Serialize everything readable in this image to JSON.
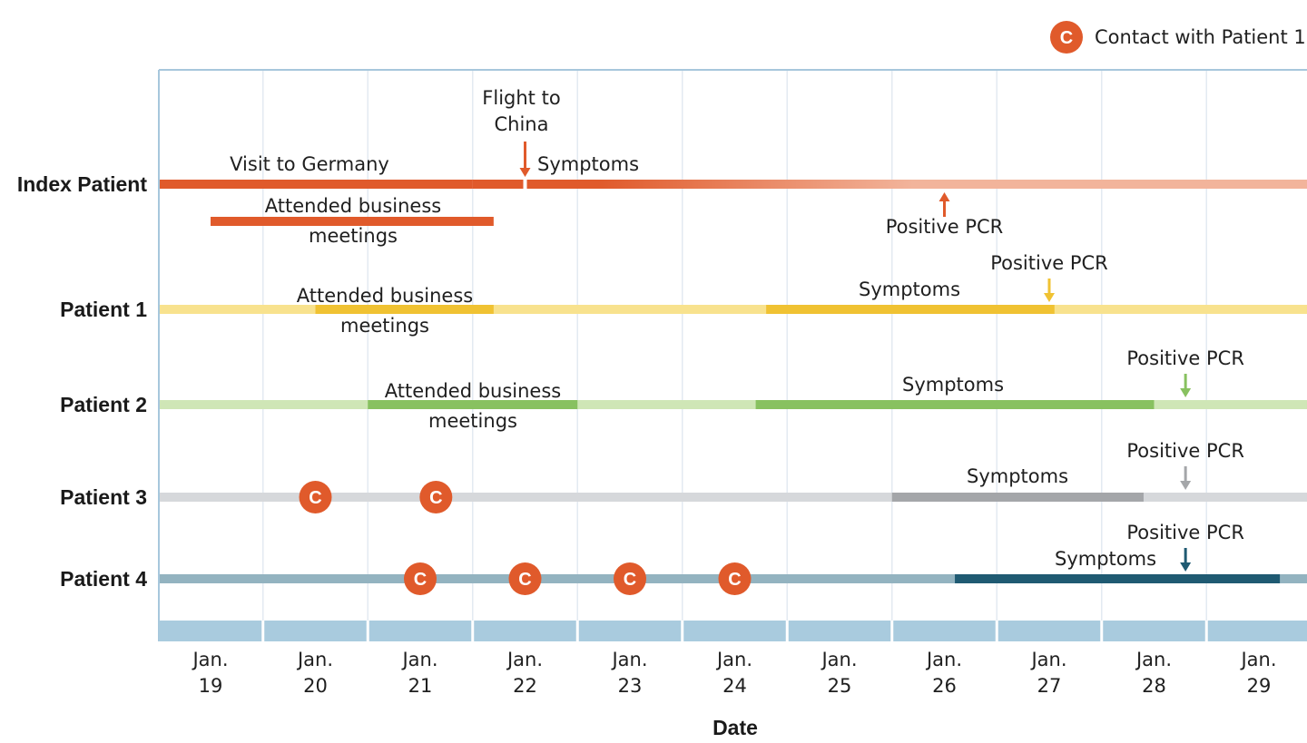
{
  "legend": {
    "marker": "C",
    "label": "Contact with Patient 1"
  },
  "x_axis": {
    "title": "Date",
    "ticks": [
      {
        "month": "Jan.",
        "day": "19"
      },
      {
        "month": "Jan.",
        "day": "20"
      },
      {
        "month": "Jan.",
        "day": "21"
      },
      {
        "month": "Jan.",
        "day": "22"
      },
      {
        "month": "Jan.",
        "day": "23"
      },
      {
        "month": "Jan.",
        "day": "24"
      },
      {
        "month": "Jan.",
        "day": "25"
      },
      {
        "month": "Jan.",
        "day": "26"
      },
      {
        "month": "Jan.",
        "day": "27"
      },
      {
        "month": "Jan.",
        "day": "28"
      },
      {
        "month": "Jan.",
        "day": "29"
      }
    ]
  },
  "colors": {
    "index_dark": "#e05a2b",
    "index_light": "#f2b49b",
    "p1_dark": "#f0c232",
    "p1_light": "#f8e28e",
    "p2_dark": "#88c160",
    "p2_light": "#cfe6b6",
    "p3_dark": "#a4a6a9",
    "p3_light": "#d6d8db",
    "p4_dark": "#1f5a72",
    "p4_light": "#93b3c0",
    "contact": "#e05a2b",
    "axis_band": "#a9cbde",
    "grid": "#e3eaf1",
    "frame": "#a7c7dc"
  },
  "rows": [
    {
      "id": "index",
      "label": "Index Patient",
      "line_color": "#f2b49b",
      "segments": [
        {
          "start": 18.5,
          "end": 21.5,
          "color": "#e05a2b",
          "label_lines": [
            "Visit to Germany"
          ]
        },
        {
          "start": 21.5,
          "end": 28.5,
          "color": "#e05a2b",
          "fade_to": "#f2b49b",
          "fade_from": 22.7,
          "fade_until": 25.7,
          "label_lines": [
            "Symptoms"
          ]
        }
      ],
      "sub_segments": [
        {
          "start": 19.0,
          "end": 21.7,
          "color": "#e05a2b",
          "label_lines": [
            "Attended business",
            "meetings"
          ]
        }
      ],
      "markers": [
        {
          "date": 22.0,
          "direction": "down",
          "color": "#e05a2b",
          "label_lines": [
            "Flight to",
            "China"
          ]
        },
        {
          "date": 26.0,
          "direction": "up",
          "color": "#e05a2b",
          "label_lines": [
            "Positive PCR"
          ]
        }
      ],
      "contacts": []
    },
    {
      "id": "patient1",
      "label": "Patient 1",
      "line_color": "#f8e28e",
      "segments": [
        {
          "start": 20.0,
          "end": 21.7,
          "color": "#f0c232",
          "label_lines": [
            "Attended business",
            "meetings"
          ]
        },
        {
          "start": 24.3,
          "end": 27.05,
          "color": "#f0c232",
          "label_lines": [
            "Symptoms"
          ]
        }
      ],
      "markers": [
        {
          "date": 27.0,
          "direction": "down",
          "color": "#f0c232",
          "label_lines": [
            "Positive PCR"
          ]
        }
      ],
      "contacts": []
    },
    {
      "id": "patient2",
      "label": "Patient 2",
      "line_color": "#cfe6b6",
      "segments": [
        {
          "start": 20.5,
          "end": 22.5,
          "color": "#88c160",
          "label_lines": [
            "Attended business",
            "meetings"
          ]
        },
        {
          "start": 24.2,
          "end": 28.0,
          "color": "#88c160",
          "label_lines": [
            "Symptoms"
          ]
        }
      ],
      "markers": [
        {
          "date": 28.3,
          "direction": "down",
          "color": "#88c160",
          "label_lines": [
            "Positive PCR"
          ]
        }
      ],
      "contacts": []
    },
    {
      "id": "patient3",
      "label": "Patient 3",
      "line_color": "#d6d8db",
      "segments": [
        {
          "start": 25.5,
          "end": 27.9,
          "color": "#a4a6a9",
          "label_lines": [
            "Symptoms"
          ]
        }
      ],
      "markers": [
        {
          "date": 28.3,
          "direction": "down",
          "color": "#a4a6a9",
          "label_lines": [
            "Positive PCR"
          ]
        }
      ],
      "contacts": [
        20.0,
        21.15
      ]
    },
    {
      "id": "patient4",
      "label": "Patient 4",
      "line_color": "#93b3c0",
      "segments": [
        {
          "start": 26.1,
          "end": 29.2,
          "color": "#1f5a72",
          "label_lines": [
            "Symptoms"
          ]
        }
      ],
      "markers": [
        {
          "date": 28.3,
          "direction": "down",
          "color": "#1f5a72",
          "label_lines": [
            "Positive PCR"
          ]
        }
      ],
      "contacts": [
        21.0,
        22.0,
        23.0,
        24.0
      ]
    }
  ]
}
